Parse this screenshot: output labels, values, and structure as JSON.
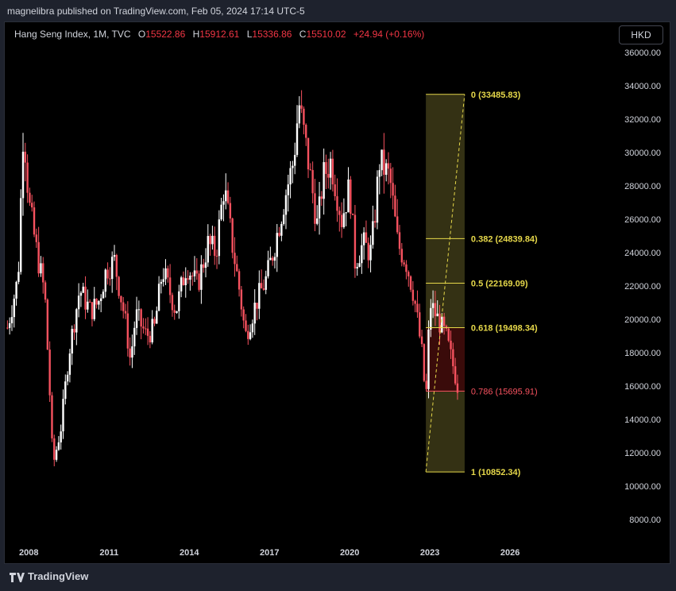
{
  "header": {
    "published": "magnelibra published on TradingView.com, Feb 05, 2024 17:14 UTC-5"
  },
  "legend": {
    "symbol": "Hang Seng Index, 1M, TVC",
    "o_label": "O",
    "o_value": "15522.86",
    "h_label": "H",
    "h_value": "15912.61",
    "l_label": "L",
    "l_value": "15336.86",
    "c_label": "C",
    "c_value": "15510.02",
    "change": "+24.94 (+0.16%)"
  },
  "currency_button": "HKD",
  "footer": {
    "brand": "TradingView"
  },
  "colors": {
    "up": "#ffffff",
    "down": "#f7525f",
    "fib_line": "#e6d84a",
    "fib_zone": "#3a3616",
    "fib_zone_red": "#3b0a0a",
    "background": "#000000"
  },
  "chart_data": {
    "type": "candlestick",
    "title": "Hang Seng Index, 1M, TVC",
    "ylim": [
      7000,
      37000
    ],
    "y_ticks": [
      "36000.00",
      "34000.00",
      "32000.00",
      "30000.00",
      "28000.00",
      "26000.00",
      "24000.00",
      "22000.00",
      "20000.00",
      "18000.00",
      "16000.00",
      "14000.00",
      "12000.00",
      "10000.00",
      "8000.00"
    ],
    "y_tick_values": [
      36000,
      34000,
      32000,
      30000,
      28000,
      26000,
      24000,
      22000,
      20000,
      18000,
      16000,
      14000,
      12000,
      10000,
      8000
    ],
    "x_ticks": [
      "2008",
      "2011",
      "2014",
      "2017",
      "2020",
      "2023",
      "2026"
    ],
    "x_tick_years": [
      2008,
      2011,
      2014,
      2017,
      2020,
      2023,
      2026
    ],
    "x_range_years": [
      2007.1,
      2027.6
    ],
    "price_path": [
      [
        2007.2,
        19500
      ],
      [
        2007.6,
        22500
      ],
      [
        2007.8,
        31800
      ],
      [
        2008.0,
        27000
      ],
      [
        2008.3,
        24000
      ],
      [
        2008.6,
        21500
      ],
      [
        2008.8,
        15000
      ],
      [
        2008.9,
        11200
      ],
      [
        2009.2,
        13500
      ],
      [
        2009.5,
        18000
      ],
      [
        2009.9,
        21800
      ],
      [
        2010.3,
        20500
      ],
      [
        2010.6,
        21000
      ],
      [
        2010.9,
        23000
      ],
      [
        2011.2,
        23500
      ],
      [
        2011.6,
        20000
      ],
      [
        2011.8,
        17500
      ],
      [
        2012.0,
        20300
      ],
      [
        2012.4,
        19000
      ],
      [
        2012.7,
        19500
      ],
      [
        2013.0,
        23000
      ],
      [
        2013.5,
        20500
      ],
      [
        2013.9,
        23300
      ],
      [
        2014.3,
        22000
      ],
      [
        2014.7,
        24500
      ],
      [
        2015.0,
        24000
      ],
      [
        2015.3,
        28000
      ],
      [
        2015.6,
        24600
      ],
      [
        2015.9,
        21500
      ],
      [
        2016.1,
        19000
      ],
      [
        2016.5,
        21000
      ],
      [
        2016.9,
        22500
      ],
      [
        2017.2,
        24500
      ],
      [
        2017.6,
        27500
      ],
      [
        2017.9,
        29500
      ],
      [
        2018.1,
        33000
      ],
      [
        2018.4,
        30000
      ],
      [
        2018.8,
        25500
      ],
      [
        2019.0,
        28500
      ],
      [
        2019.3,
        29500
      ],
      [
        2019.7,
        26000
      ],
      [
        2020.0,
        28000
      ],
      [
        2020.2,
        23500
      ],
      [
        2020.5,
        24500
      ],
      [
        2020.8,
        24000
      ],
      [
        2021.0,
        27200
      ],
      [
        2021.1,
        29500
      ],
      [
        2021.5,
        28500
      ],
      [
        2021.8,
        24500
      ],
      [
        2022.1,
        23500
      ],
      [
        2022.4,
        21500
      ],
      [
        2022.7,
        18000
      ],
      [
        2022.85,
        15000
      ],
      [
        2023.0,
        21000
      ],
      [
        2023.3,
        20000
      ],
      [
        2023.6,
        19000
      ],
      [
        2023.9,
        17000
      ],
      [
        2024.1,
        15510
      ]
    ],
    "fibonacci": {
      "x_start": 2022.85,
      "x_end": 2024.3,
      "levels": [
        {
          "ratio": "0",
          "value": 33485.83,
          "label": "0 (33485.83)"
        },
        {
          "ratio": "0.382",
          "value": 24839.84,
          "label": "0.382 (24839.84)"
        },
        {
          "ratio": "0.5",
          "value": 22169.09,
          "label": "0.5 (22169.09)"
        },
        {
          "ratio": "0.618",
          "value": 19498.34,
          "label": "0.618 (19498.34)"
        },
        {
          "ratio": "0.786",
          "value": 15695.91,
          "label": "0.786 (15695.91)"
        },
        {
          "ratio": "1",
          "value": 10852.34,
          "label": "1 (10852.34)"
        }
      ]
    }
  }
}
